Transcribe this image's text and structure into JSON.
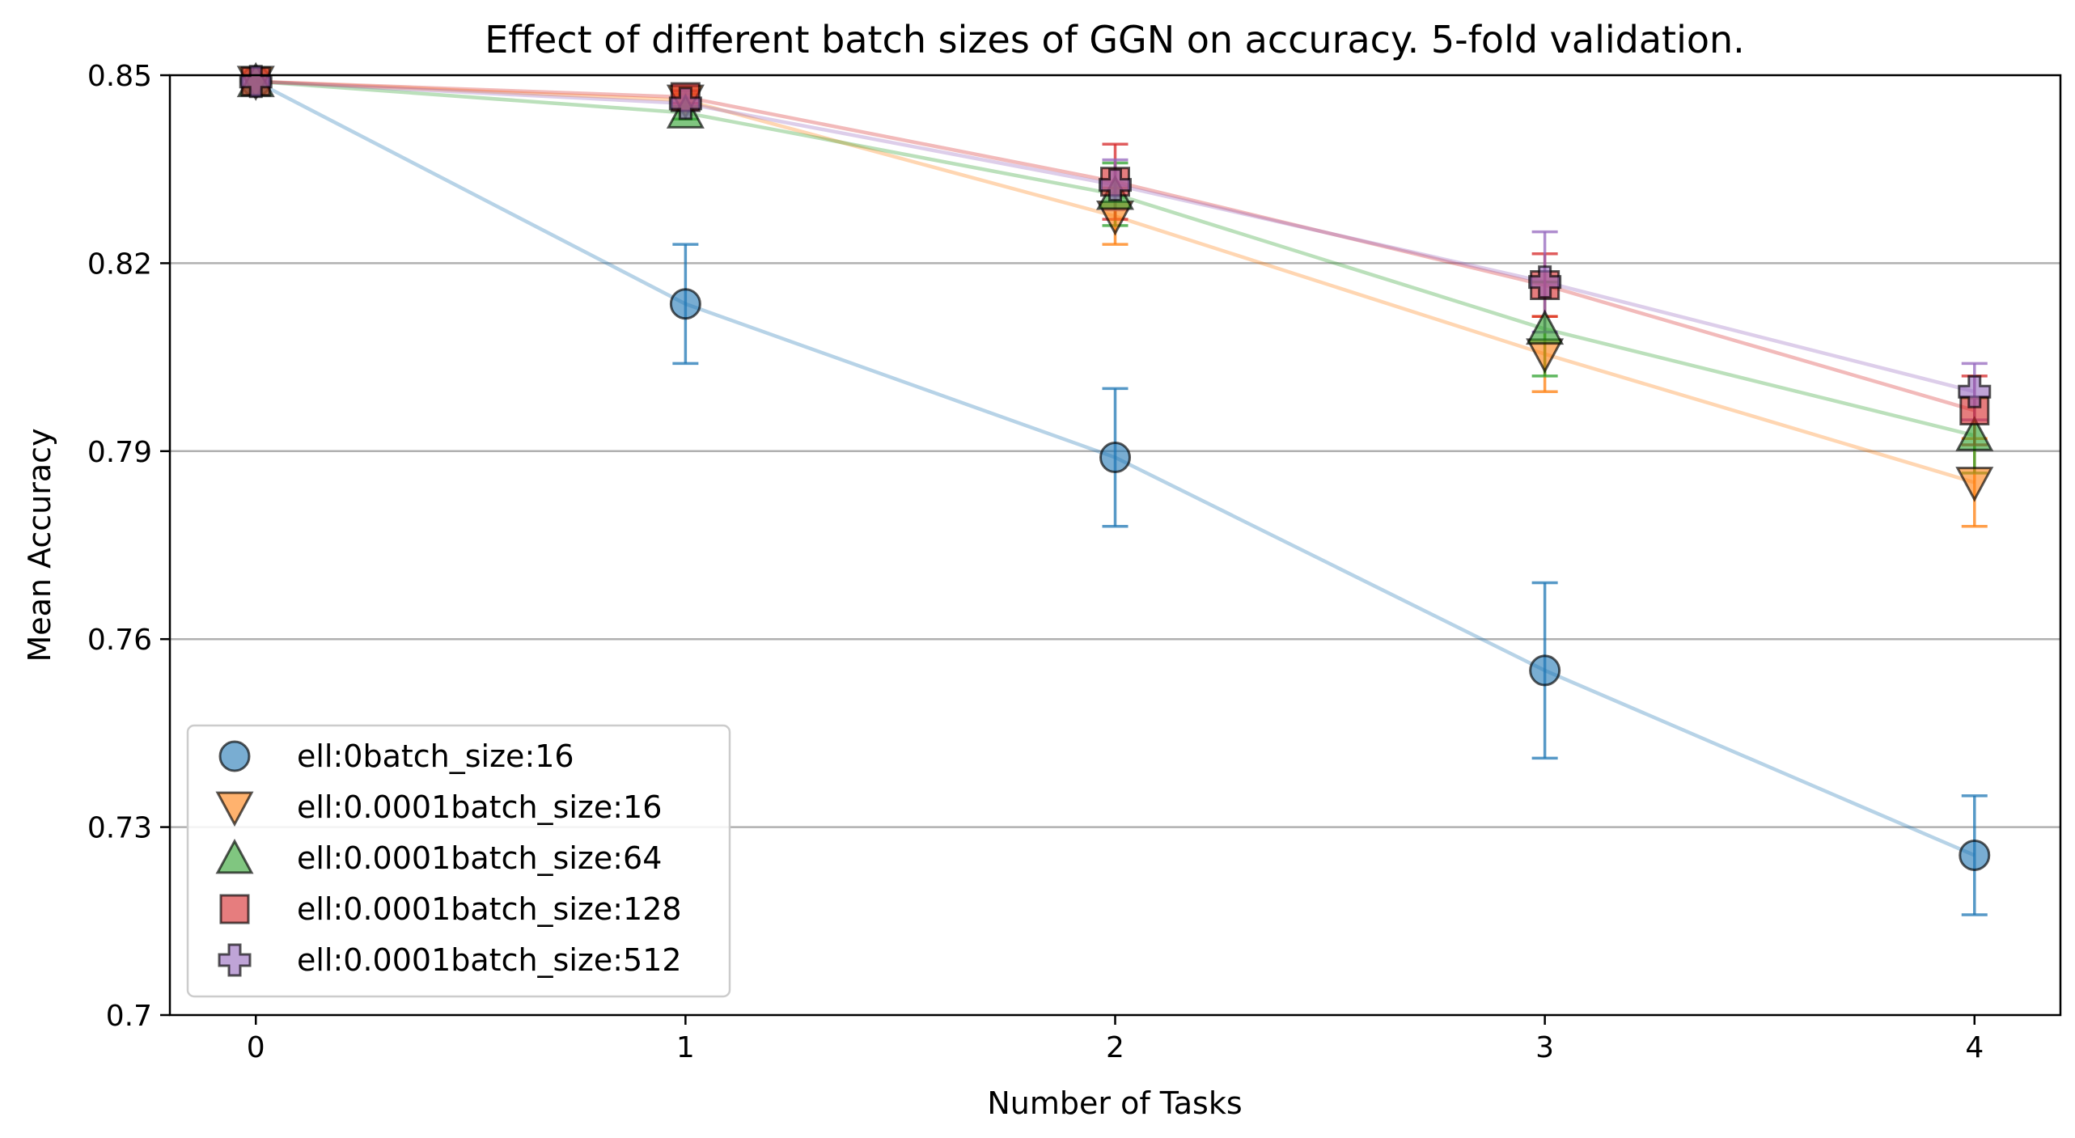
{
  "chart_data": {
    "type": "scatter",
    "title": "Effect of different batch sizes of GGN on accuracy. 5-fold validation.",
    "xlabel": "Number of Tasks",
    "ylabel": "Mean Accuracy",
    "x": [
      0,
      1,
      2,
      3,
      4
    ],
    "xticks": [
      "0",
      "1",
      "2",
      "3",
      "4"
    ],
    "yticks": [
      "0.7",
      "0.73",
      "0.76",
      "0.79",
      "0.82",
      "0.85"
    ],
    "xlim": [
      -0.2,
      4.2
    ],
    "ylim": [
      0.7,
      0.85
    ],
    "grid": "horizontal",
    "legend_position": "lower-left",
    "series": [
      {
        "name": "ell:0batch_size:16",
        "marker": "circle",
        "color": "#1f77b4",
        "values": [
          0.849,
          0.8135,
          0.789,
          0.755,
          0.7255
        ],
        "errors": [
          0.0,
          0.0095,
          0.011,
          0.014,
          0.0095
        ]
      },
      {
        "name": "ell:0.0001batch_size:16",
        "marker": "triangle-down",
        "color": "#ff7f0e",
        "values": [
          0.849,
          0.846,
          0.8275,
          0.8055,
          0.785
        ],
        "errors": [
          0.0,
          0.001,
          0.0045,
          0.006,
          0.007
        ]
      },
      {
        "name": "ell:0.0001batch_size:64",
        "marker": "triangle-up",
        "color": "#2ca02c",
        "values": [
          0.849,
          0.844,
          0.831,
          0.8095,
          0.7925
        ],
        "errors": [
          0.0,
          0.001,
          0.005,
          0.0075,
          0.006
        ]
      },
      {
        "name": "ell:0.0001batch_size:128",
        "marker": "square",
        "color": "#d62728",
        "values": [
          0.849,
          0.8465,
          0.833,
          0.8165,
          0.7965
        ],
        "errors": [
          0.0,
          0.001,
          0.006,
          0.005,
          0.0055
        ]
      },
      {
        "name": "ell:0.0001batch_size:512",
        "marker": "plus",
        "color": "#9467bd",
        "values": [
          0.849,
          0.8455,
          0.8325,
          0.817,
          0.7995
        ],
        "errors": [
          0.0,
          0.001,
          0.004,
          0.008,
          0.0045
        ]
      }
    ]
  }
}
